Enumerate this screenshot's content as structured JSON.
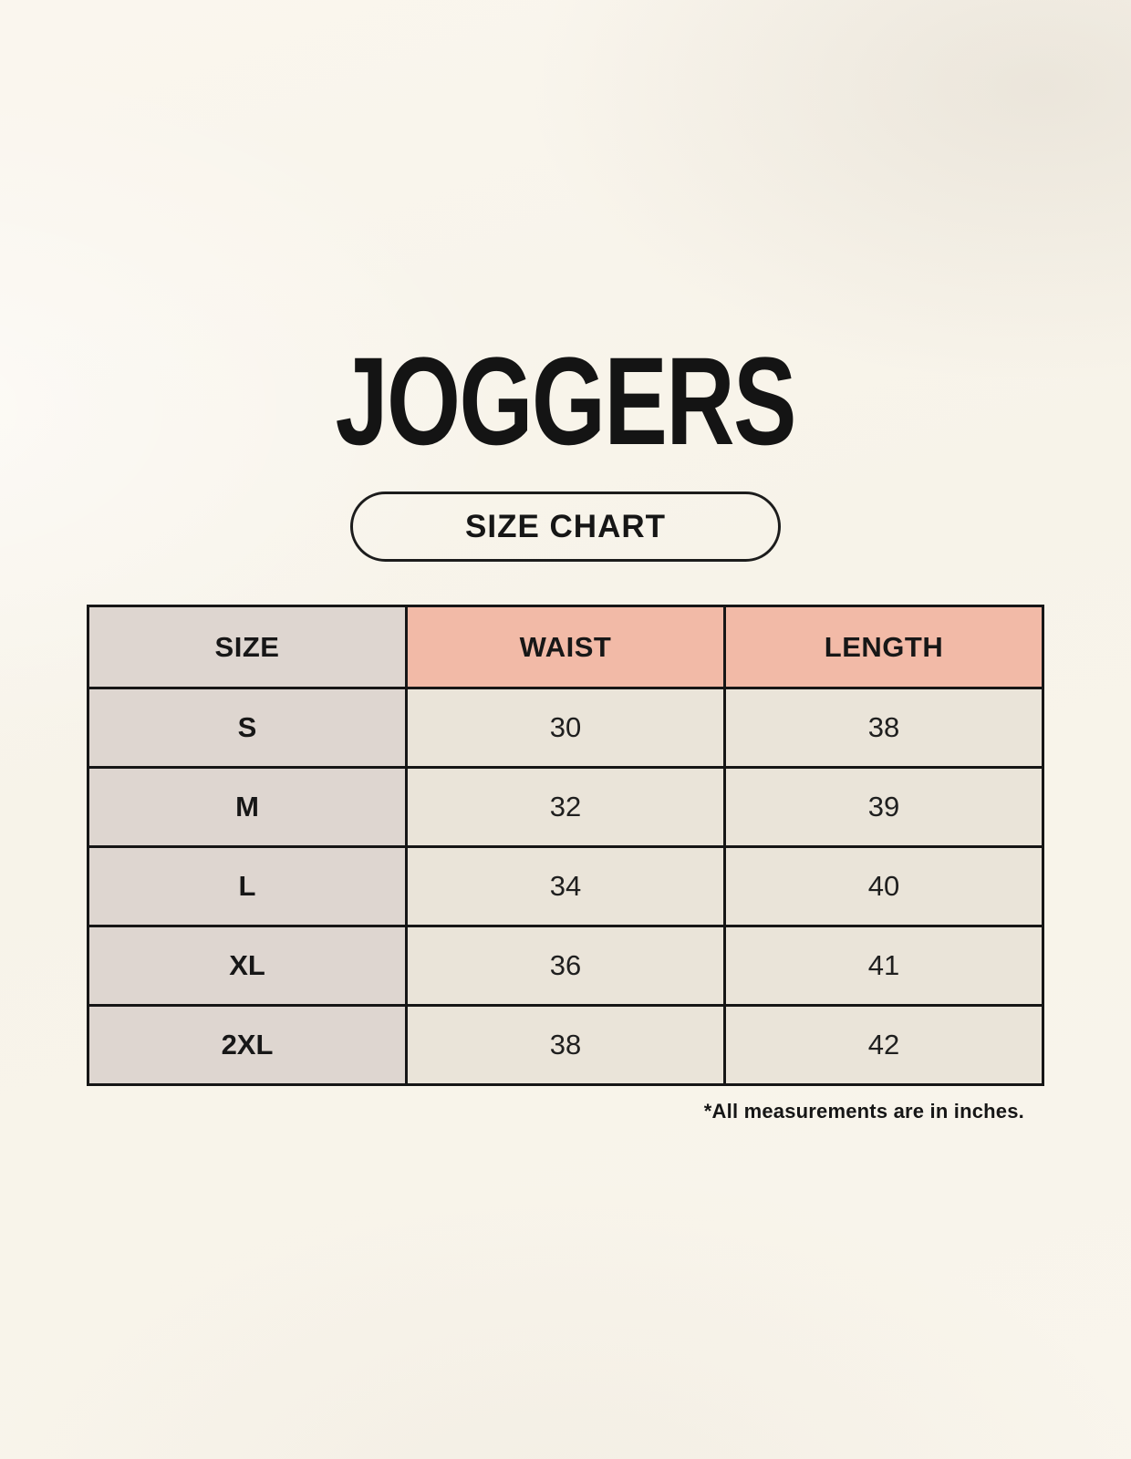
{
  "page": {
    "title": "JOGGERS",
    "badge_label": "SIZE CHART",
    "footnote": "*All measurements are in inches."
  },
  "table": {
    "columns": [
      "SIZE",
      "WAIST",
      "LENGTH"
    ],
    "rows": [
      [
        "S",
        "30",
        "38"
      ],
      [
        "M",
        "32",
        "39"
      ],
      [
        "L",
        "34",
        "40"
      ],
      [
        "XL",
        "36",
        "41"
      ],
      [
        "2XL",
        "38",
        "42"
      ]
    ]
  },
  "chart_data": {
    "type": "table",
    "title": "JOGGERS",
    "columns": [
      "SIZE",
      "WAIST",
      "LENGTH"
    ],
    "rows": [
      [
        "S",
        30,
        38
      ],
      [
        "M",
        32,
        39
      ],
      [
        "L",
        34,
        40
      ],
      [
        "XL",
        36,
        41
      ],
      [
        "2XL",
        38,
        42
      ]
    ],
    "units": "inches"
  },
  "colors": {
    "background": "#F8F4EA",
    "header_accent": "#F2BAA7",
    "size_column_bg": "#DED6D0",
    "value_cell_bg": "#EAE4D9",
    "table_border": "#161616",
    "text": "#1B1B1B"
  }
}
